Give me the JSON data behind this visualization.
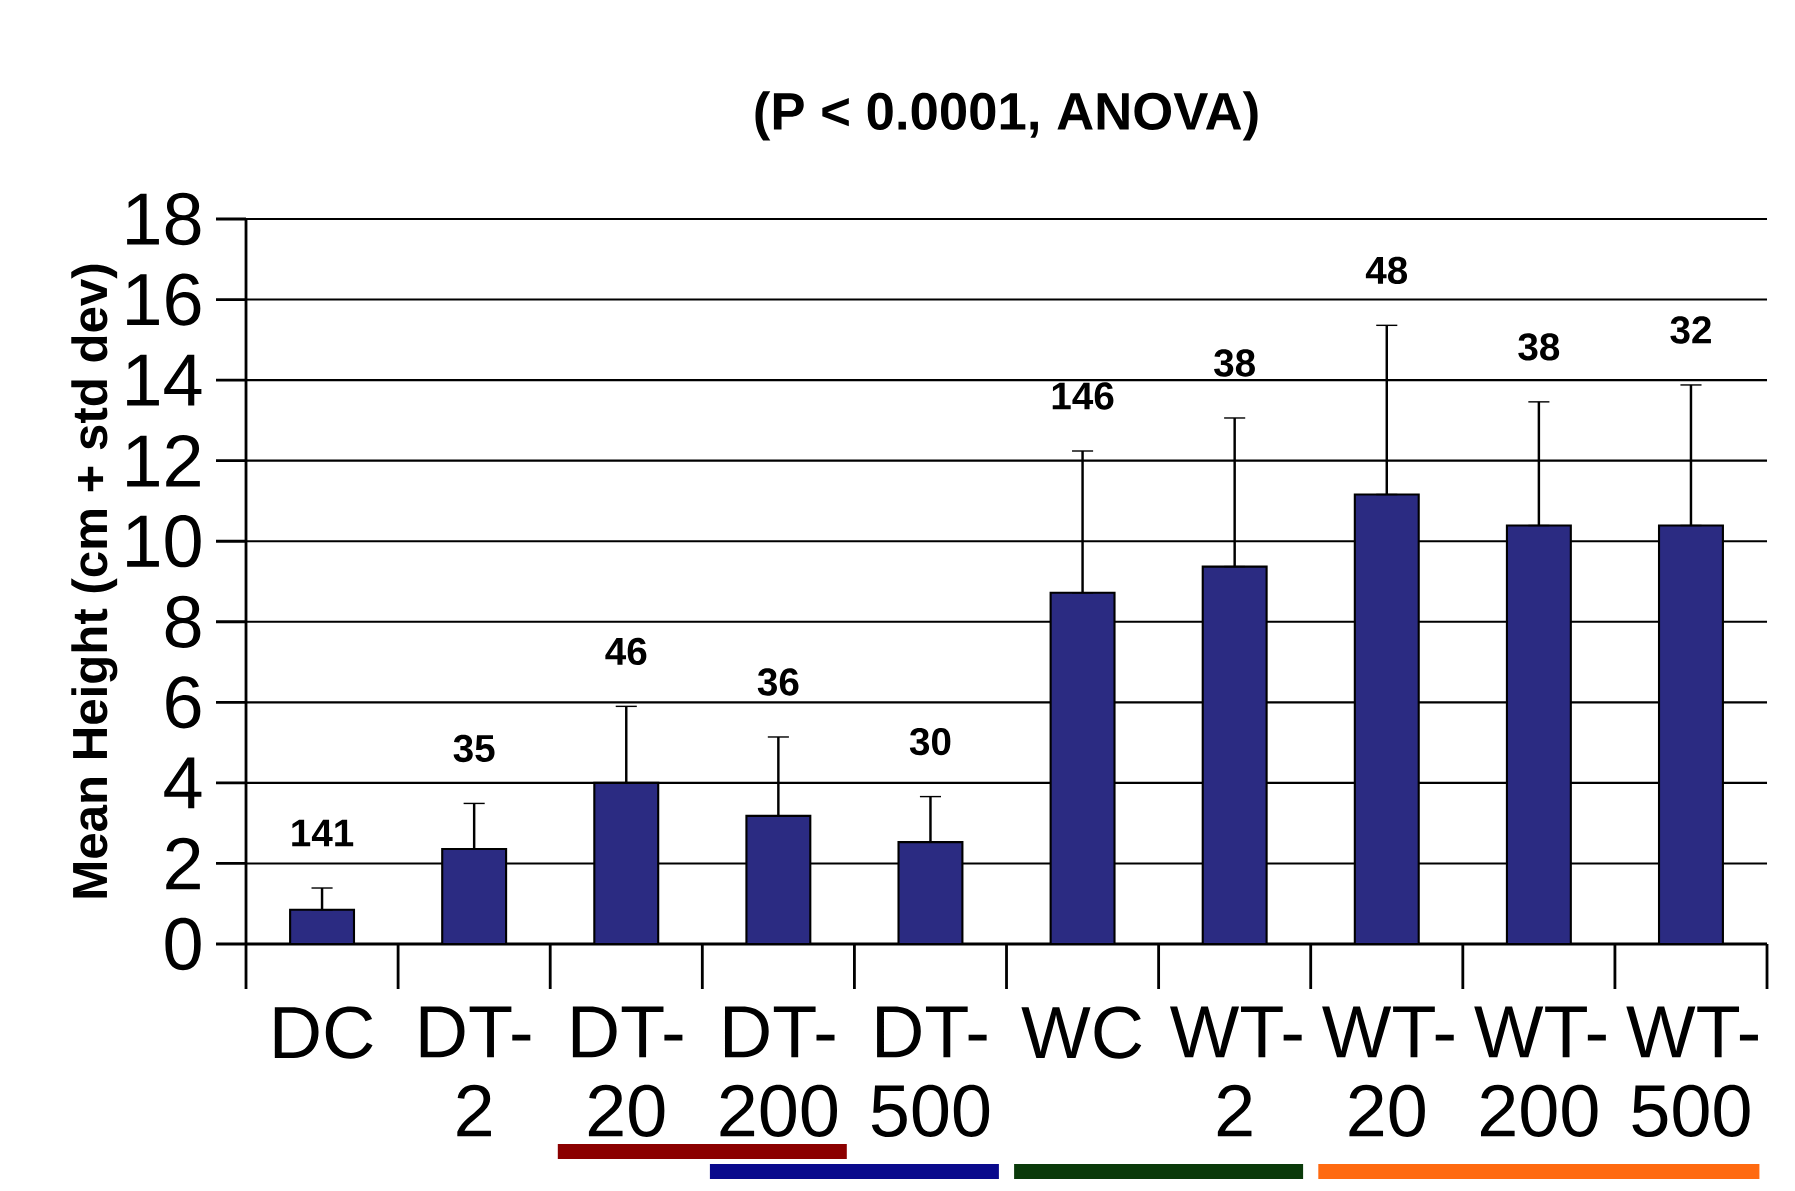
{
  "chart_data": {
    "type": "bar",
    "title": "(P < 0.0001, ANOVA)",
    "ylabel": "Mean Height (cm + std dev)",
    "categories": [
      "DC",
      "DT-2",
      "DT-20",
      "DT-200",
      "DT-500",
      "WC",
      "WT-2",
      "WT-20",
      "WT-200",
      "WT-500"
    ],
    "values": [
      0.85,
      2.36,
      4.0,
      3.18,
      2.53,
      8.72,
      9.37,
      11.16,
      10.39,
      10.39
    ],
    "errors": [
      [
        0.85,
        1.39
      ],
      [
        2.36,
        3.49
      ],
      [
        4.0,
        5.9
      ],
      [
        3.18,
        5.14
      ],
      [
        2.53,
        3.66
      ],
      [
        8.72,
        12.24
      ],
      [
        9.37,
        13.06
      ],
      [
        11.16,
        15.36
      ],
      [
        10.39,
        13.46
      ],
      [
        10.39,
        13.88
      ]
    ],
    "color": "#2b2b82",
    "ylim": [
      0,
      18
    ],
    "yticks": [
      0,
      2,
      4,
      6,
      8,
      10,
      12,
      14,
      16,
      18
    ],
    "grid": "y",
    "annotations": [
      "141",
      "35",
      "46",
      "36",
      "30",
      "146",
      "38",
      "48",
      "38",
      "32"
    ]
  }
}
